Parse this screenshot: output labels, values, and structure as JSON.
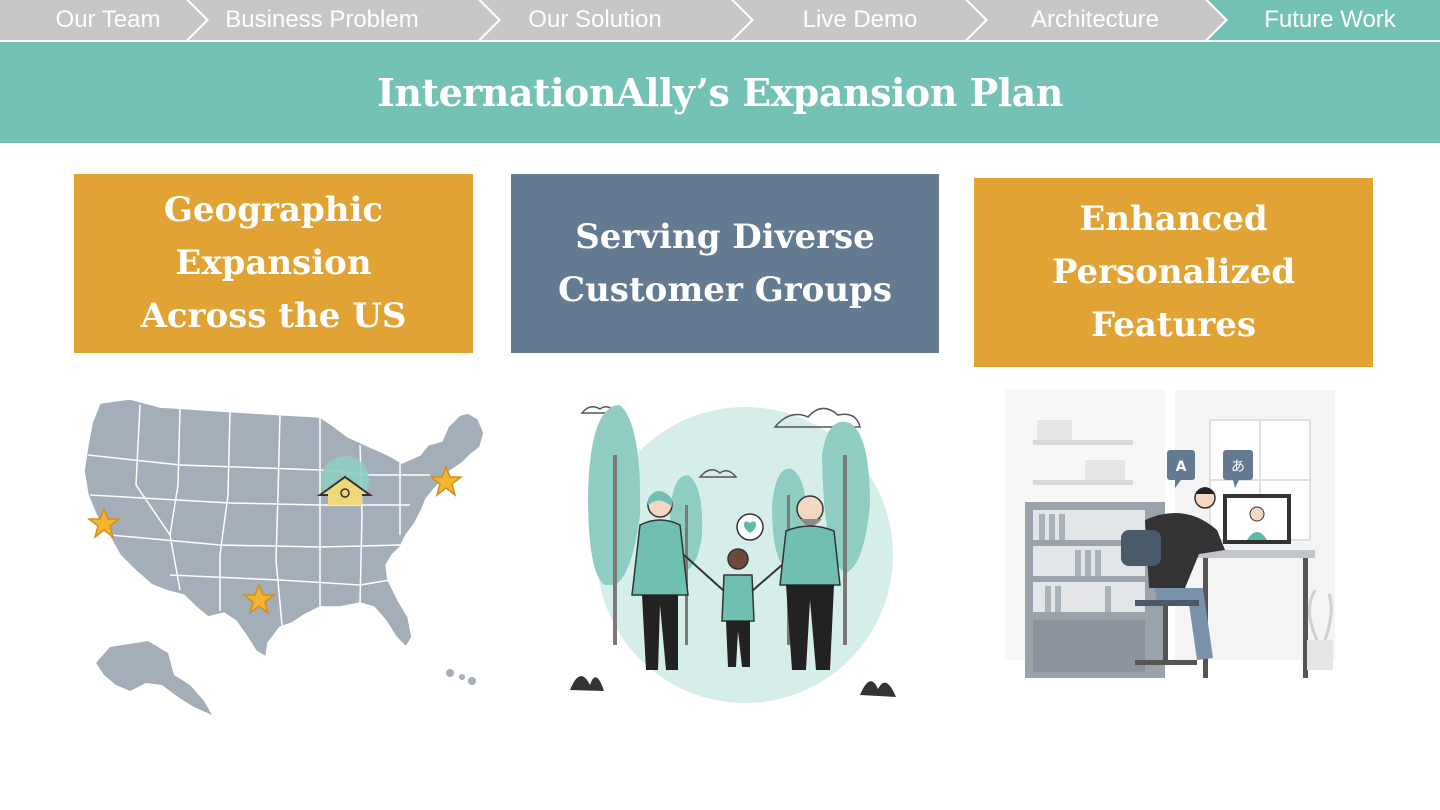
{
  "nav": {
    "items": [
      {
        "label": "Our Team"
      },
      {
        "label": "Business Problem"
      },
      {
        "label": "Our Solution"
      },
      {
        "label": "Live Demo"
      },
      {
        "label": "Architecture"
      },
      {
        "label": "Future Work"
      }
    ],
    "active_index": 5
  },
  "title": "InternationAlly’s Expansion Plan",
  "cards": {
    "geographic": {
      "lines": [
        "Geographic",
        "Expansion",
        "Across the US"
      ]
    },
    "diverse": {
      "lines": [
        "Serving Diverse",
        "Customer Groups"
      ]
    },
    "features": {
      "lines": [
        "Enhanced",
        "Personalized",
        "Features"
      ]
    }
  },
  "illustrations": {
    "language_bubbles": {
      "left": "A",
      "right": "あ"
    }
  },
  "colors": {
    "nav_inactive": "#c7c7c7",
    "nav_active": "#74c1b6",
    "title_bar": "#74c1b6",
    "card_orange": "#e2a335",
    "card_slate": "#637a91",
    "map_fill": "#a4aeb8",
    "star": "#f2b52f",
    "teal_illustration": "#8fcdc3"
  }
}
